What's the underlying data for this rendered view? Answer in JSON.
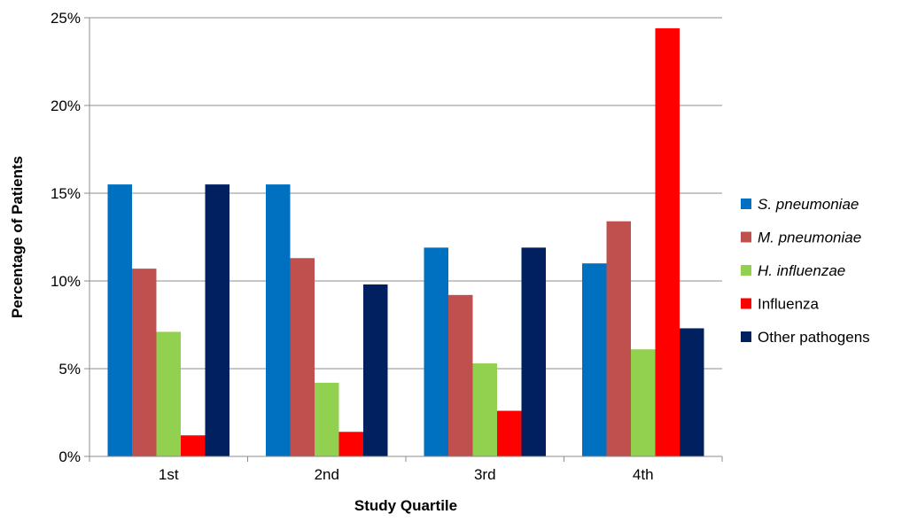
{
  "chart_data": {
    "type": "bar",
    "title": "",
    "xlabel": "Study Quartile",
    "ylabel": "Percentage of Patients",
    "categories": [
      "1st",
      "2nd",
      "3rd",
      "4th"
    ],
    "ylim": [
      0,
      25
    ],
    "yticks": [
      0,
      5,
      10,
      15,
      20,
      25
    ],
    "ytick_labels": [
      "0%",
      "5%",
      "10%",
      "15%",
      "20%",
      "25%"
    ],
    "grid": true,
    "legend_position": "right",
    "series": [
      {
        "name": "S. pneumoniae",
        "italic": true,
        "color": "#0070C0",
        "values": [
          15.5,
          15.5,
          11.9,
          11.0
        ]
      },
      {
        "name": "M. pneumoniae",
        "italic": true,
        "color": "#C0504D",
        "values": [
          10.7,
          11.3,
          9.2,
          13.4
        ]
      },
      {
        "name": "H. influenzae",
        "italic": true,
        "color": "#92D050",
        "values": [
          7.1,
          4.2,
          5.3,
          6.1
        ]
      },
      {
        "name": "Influenza",
        "italic": false,
        "color": "#FF0000",
        "values": [
          1.2,
          1.4,
          2.6,
          24.4
        ]
      },
      {
        "name": "Other pathogens",
        "italic": false,
        "color": "#002060",
        "values": [
          15.5,
          9.8,
          11.9,
          7.3
        ]
      }
    ]
  }
}
